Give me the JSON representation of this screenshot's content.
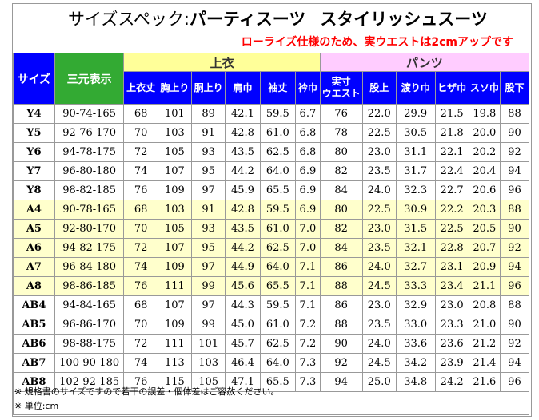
{
  "title": {
    "prefix": "サイズスペック:",
    "main": "パーティスーツ",
    "sub": "スタイリッシュスーツ"
  },
  "notice": "ローライズ仕様のため、実ウエストは2cmアップです",
  "headers": {
    "size": "サイズ",
    "sanyo": "三元表示",
    "jacket_group": "上衣",
    "pants_group": "パンツ",
    "columns": [
      "上衣丈",
      "胸上り",
      "胴上り",
      "肩巾",
      "袖丈",
      "衿巾",
      "実寸\nウエスト",
      "股上",
      "渡り巾",
      "ヒザ巾",
      "スソ巾",
      "股下"
    ]
  },
  "rows": [
    {
      "size": "Y4",
      "sanyo": "90-74-165",
      "values": [
        "68",
        "101",
        "89",
        "42.1",
        "59.5",
        "6.7",
        "76",
        "22.0",
        "29.9",
        "21.5",
        "19.8",
        "88"
      ],
      "highlight": false
    },
    {
      "size": "Y5",
      "sanyo": "92-76-170",
      "values": [
        "70",
        "103",
        "91",
        "42.8",
        "61.0",
        "6.8",
        "78",
        "22.5",
        "30.5",
        "21.8",
        "20.0",
        "90"
      ],
      "highlight": false
    },
    {
      "size": "Y6",
      "sanyo": "94-78-175",
      "values": [
        "72",
        "105",
        "93",
        "43.5",
        "62.5",
        "6.8",
        "80",
        "23.0",
        "31.1",
        "22.1",
        "20.2",
        "92"
      ],
      "highlight": false
    },
    {
      "size": "Y7",
      "sanyo": "96-80-180",
      "values": [
        "74",
        "107",
        "95",
        "44.2",
        "64.0",
        "6.9",
        "82",
        "23.5",
        "31.7",
        "22.4",
        "20.4",
        "94"
      ],
      "highlight": false
    },
    {
      "size": "Y8",
      "sanyo": "98-82-185",
      "values": [
        "76",
        "109",
        "97",
        "45.9",
        "65.5",
        "6.9",
        "84",
        "24.0",
        "32.3",
        "22.7",
        "20.6",
        "96"
      ],
      "highlight": false
    },
    {
      "size": "A4",
      "sanyo": "90-78-165",
      "values": [
        "68",
        "103",
        "91",
        "42.8",
        "59.5",
        "6.9",
        "80",
        "22.5",
        "30.9",
        "22.2",
        "20.3",
        "88"
      ],
      "highlight": true
    },
    {
      "size": "A5",
      "sanyo": "92-80-170",
      "values": [
        "70",
        "105",
        "93",
        "43.5",
        "61.0",
        "7.0",
        "82",
        "23.0",
        "31.5",
        "22.5",
        "20.5",
        "90"
      ],
      "highlight": true
    },
    {
      "size": "A6",
      "sanyo": "94-82-175",
      "values": [
        "72",
        "107",
        "95",
        "44.2",
        "62.5",
        "7.0",
        "84",
        "23.5",
        "32.1",
        "22.8",
        "20.7",
        "92"
      ],
      "highlight": true
    },
    {
      "size": "A7",
      "sanyo": "96-84-180",
      "values": [
        "74",
        "109",
        "97",
        "44.9",
        "64.0",
        "7.1",
        "86",
        "24.0",
        "32.7",
        "23.1",
        "20.9",
        "94"
      ],
      "highlight": true
    },
    {
      "size": "A8",
      "sanyo": "98-86-185",
      "values": [
        "76",
        "111",
        "99",
        "45.6",
        "65.5",
        "7.1",
        "88",
        "24.5",
        "33.3",
        "23.4",
        "21.1",
        "96"
      ],
      "highlight": true
    },
    {
      "size": "AB4",
      "sanyo": "94-84-165",
      "values": [
        "68",
        "107",
        "97",
        "44.3",
        "59.5",
        "7.1",
        "86",
        "23.0",
        "32.9",
        "23.0",
        "20.8",
        "88"
      ],
      "highlight": false
    },
    {
      "size": "AB5",
      "sanyo": "96-86-170",
      "values": [
        "70",
        "109",
        "99",
        "45.0",
        "61.0",
        "7.2",
        "88",
        "23.5",
        "33.0",
        "23.3",
        "21.0",
        "90"
      ],
      "highlight": false
    },
    {
      "size": "AB6",
      "sanyo": "98-88-175",
      "values": [
        "72",
        "111",
        "101",
        "45.7",
        "62.5",
        "7.2",
        "90",
        "24.0",
        "33.6",
        "23.6",
        "21.2",
        "92"
      ],
      "highlight": false
    },
    {
      "size": "AB7",
      "sanyo": "100-90-180",
      "values": [
        "74",
        "113",
        "103",
        "46.4",
        "64.0",
        "7.3",
        "92",
        "24.5",
        "34.2",
        "23.9",
        "21.4",
        "94"
      ],
      "highlight": false
    },
    {
      "size": "AB8",
      "sanyo": "102-92-185",
      "values": [
        "76",
        "115",
        "105",
        "47.1",
        "65.5",
        "7.3",
        "94",
        "25.0",
        "34.8",
        "24.2",
        "21.6",
        "96"
      ],
      "highlight": false
    }
  ],
  "footnotes": [
    "※ 規格書のサイズですので若干の誤差・個体差はご容赦ください。",
    "※ 単位:cm"
  ],
  "colors": {
    "header_blue": "#0000ff",
    "sanyo_green": "#33aa33",
    "jacket_yellow": "#ffff99",
    "pants_pink": "#ffccff",
    "highlight_row": "#ffffcc",
    "notice_red": "#ff0000"
  }
}
